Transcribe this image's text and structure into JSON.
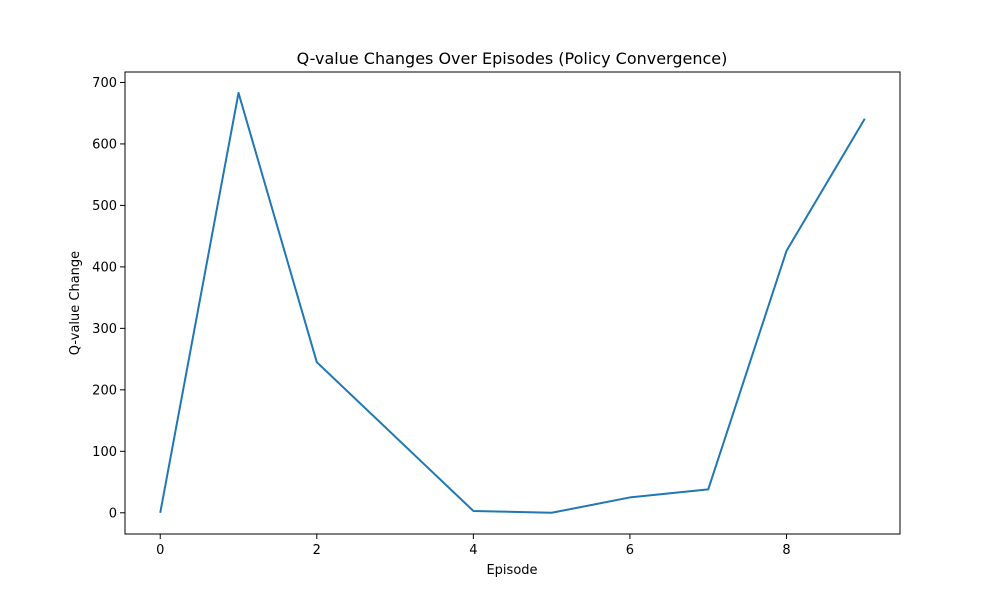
{
  "chart_data": {
    "type": "line",
    "title": "Q-value Changes Over Episodes (Policy Convergence)",
    "xlabel": "Episode",
    "ylabel": "Q-value Change",
    "xlim": [
      -0.45,
      9.45
    ],
    "ylim": [
      -34.5,
      717
    ],
    "x_ticks": [
      0,
      2,
      4,
      6,
      8
    ],
    "y_ticks": [
      0,
      100,
      200,
      300,
      400,
      500,
      600,
      700
    ],
    "grid": false,
    "legend": "none",
    "series": [
      {
        "color": "#1f77b4",
        "x": [
          0,
          1,
          2,
          3,
          4,
          5,
          6,
          7,
          8,
          9
        ],
        "y": [
          0,
          683,
          245,
          124,
          3,
          0,
          25,
          38,
          426,
          641
        ]
      }
    ]
  }
}
